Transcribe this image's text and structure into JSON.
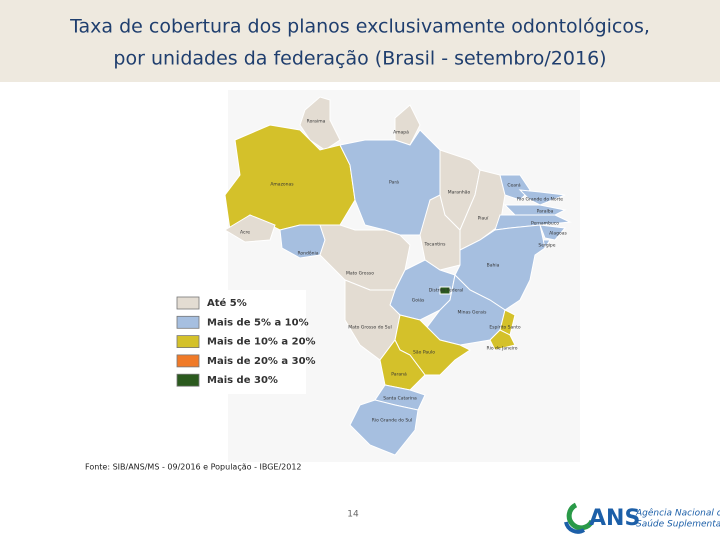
{
  "header": {
    "title_lines": [
      "Taxa de cobertura dos planos exclusivamente odontológicos,",
      "por unidades da federação (Brasil - setembro/2016)"
    ]
  },
  "map": {
    "states": [
      {
        "name": "Roraima",
        "color": "#e3dcd2"
      },
      {
        "name": "Amapá",
        "color": "#e3dcd2"
      },
      {
        "name": "Amazonas",
        "color": "#d4c12a"
      },
      {
        "name": "Pará",
        "color": "#a6bfe0"
      },
      {
        "name": "Acre",
        "color": "#e3dcd2"
      },
      {
        "name": "Rondônia",
        "color": "#a6bfe0"
      },
      {
        "name": "Mato Grosso",
        "color": "#e3dcd2"
      },
      {
        "name": "Tocantins",
        "color": "#e3dcd2"
      },
      {
        "name": "Maranhão",
        "color": "#e3dcd2"
      },
      {
        "name": "Piauí",
        "color": "#e3dcd2"
      },
      {
        "name": "Ceará",
        "color": "#a6bfe0"
      },
      {
        "name": "Rio Grande do Norte",
        "color": "#a6bfe0"
      },
      {
        "name": "Paraíba",
        "color": "#a6bfe0"
      },
      {
        "name": "Pernambuco",
        "color": "#a6bfe0"
      },
      {
        "name": "Alagoas",
        "color": "#a6bfe0"
      },
      {
        "name": "Sergipe",
        "color": "#a6bfe0"
      },
      {
        "name": "Bahia",
        "color": "#a6bfe0"
      },
      {
        "name": "Goiás",
        "color": "#a6bfe0"
      },
      {
        "name": "Distrito Federal",
        "color": "#2b5a1e"
      },
      {
        "name": "Minas Gerais",
        "color": "#a6bfe0"
      },
      {
        "name": "Mato Grosso do Sul",
        "color": "#e3dcd2"
      },
      {
        "name": "Espírito Santo",
        "color": "#d4c12a"
      },
      {
        "name": "Rio de Janeiro",
        "color": "#d4c12a"
      },
      {
        "name": "São Paulo",
        "color": "#d4c12a"
      },
      {
        "name": "Paraná",
        "color": "#d4c12a"
      },
      {
        "name": "Santa Catarina",
        "color": "#a6bfe0"
      },
      {
        "name": "Rio Grande do Sul",
        "color": "#a6bfe0"
      }
    ],
    "legend": [
      {
        "label": "Até 5%",
        "color": "#e3dcd2"
      },
      {
        "label": "Mais de 5% a 10%",
        "color": "#a6bfe0"
      },
      {
        "label": "Mais de 10% a 20%",
        "color": "#d4c12a"
      },
      {
        "label": "Mais de 20% a 30%",
        "color": "#f07a28"
      },
      {
        "label": "Mais de 30%",
        "color": "#2b5a1e"
      }
    ]
  },
  "source": "Fonte: SIB/ANS/MS - 09/2016 e População - IBGE/2012",
  "page_number": "14",
  "logo": {
    "acronym": "ANS",
    "name_lines": [
      "Agência Nacional de",
      "Saúde Suplementar"
    ]
  }
}
